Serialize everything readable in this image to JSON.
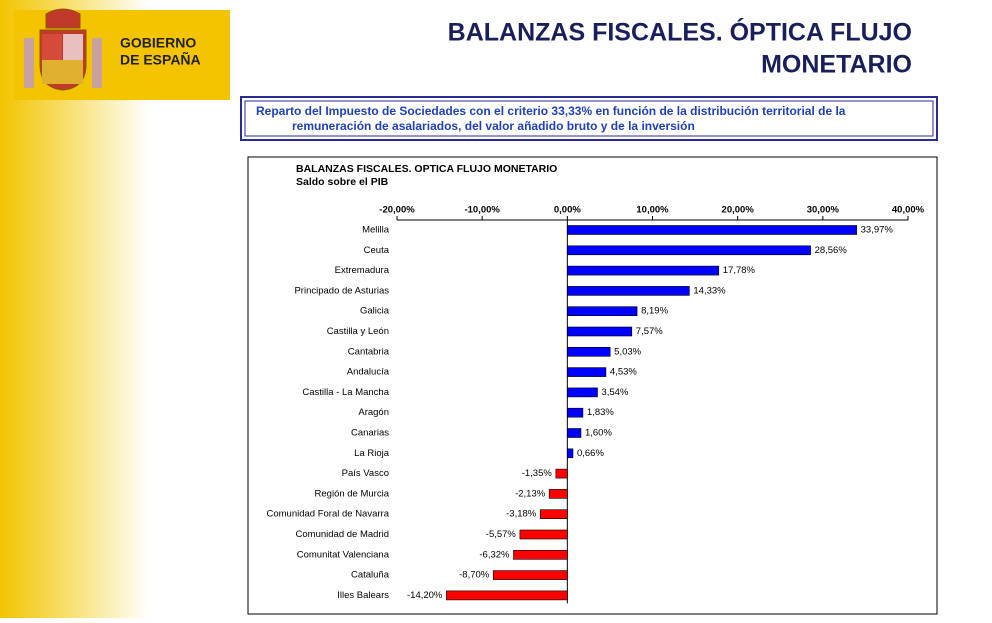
{
  "header": {
    "logo_lines": [
      "GOBIERNO",
      "DE ESPAÑA"
    ],
    "title_lines": [
      "BALANZAS FISCALES. ÓPTICA FLUJO",
      "MONETARIO"
    ]
  },
  "subtitle_lines": [
    "Reparto del Impuesto de Sociedades con el criterio 33,33% en función de la distribución territorial de la",
    "remuneración de asalariados, del valor añadido bruto y de la inversión"
  ],
  "chart_data": {
    "type": "bar",
    "orientation": "horizontal",
    "title": "BALANZAS FISCALES. OPTICA FLUJO MONETARIO",
    "subtitle": "Saldo sobre el PIB",
    "categories": [
      "Melilla",
      "Ceuta",
      "Extremadura",
      "Principado de Asturias",
      "Galicia",
      "Castilla y León",
      "Cantabria",
      "Andalucía",
      "Castilla - La Mancha",
      "Aragón",
      "Canarias",
      "La Rioja",
      "País Vasco",
      "Región de Murcia",
      "Comunidad Foral de Navarra",
      "Comunidad de Madrid",
      "Comunitat Valenciana",
      "Cataluña",
      "Illes Balears"
    ],
    "values": [
      33.97,
      28.56,
      17.78,
      14.33,
      8.19,
      7.57,
      5.03,
      4.53,
      3.54,
      1.83,
      1.6,
      0.66,
      -1.35,
      -2.13,
      -3.18,
      -5.57,
      -6.32,
      -8.7,
      -14.2
    ],
    "value_labels": [
      "33,97%",
      "28,56%",
      "17,78%",
      "14,33%",
      "8,19%",
      "7,57%",
      "5,03%",
      "4,53%",
      "3,54%",
      "1,83%",
      "1,60%",
      "0,66%",
      "-1,35%",
      "-2,13%",
      "-3,18%",
      "-5,57%",
      "-6,32%",
      "-8,70%",
      "-14,20%"
    ],
    "positive_color": "#0000ff",
    "negative_color": "#ff0000",
    "xlim": [
      -20,
      40
    ],
    "xticks": [
      {
        "value": -20,
        "label": "-20,00%"
      },
      {
        "value": -10,
        "label": "-10,00%"
      },
      {
        "value": 0,
        "label": "0,00%"
      },
      {
        "value": 10,
        "label": "10,00%"
      },
      {
        "value": 20,
        "label": "20,00%"
      },
      {
        "value": 30,
        "label": "30,00%"
      },
      {
        "value": 40,
        "label": "40,00%"
      }
    ]
  }
}
